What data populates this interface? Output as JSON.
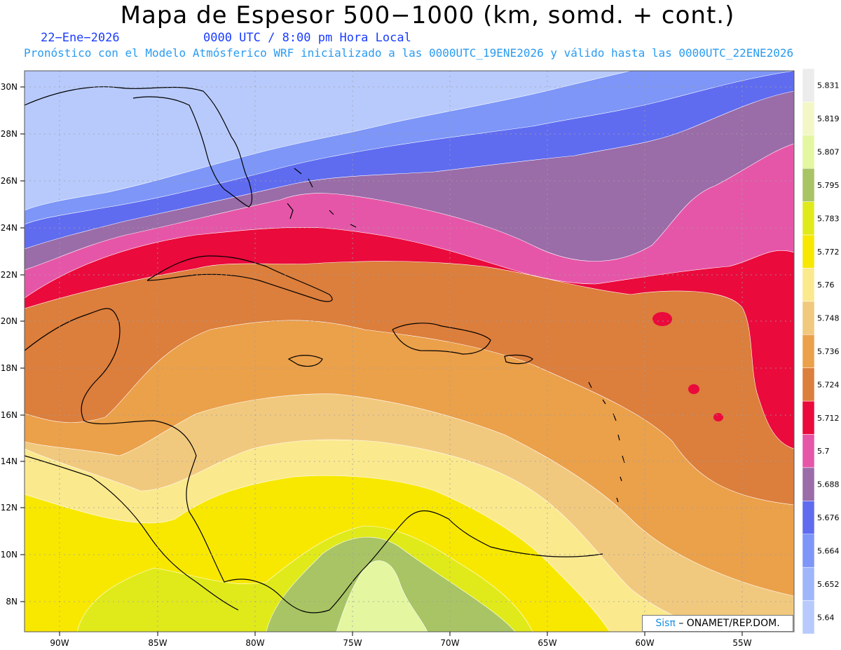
{
  "header": {
    "title": "Mapa de Espesor 500−1000 (km, somd. + cont.)",
    "date": "22−Ene−2026",
    "time": "0000 UTC / 8:00 pm Hora Local",
    "forecast": "Pronóstico con el Modelo Atmósferico WRF inicializado a las 0000UTC_19ENE2026 y válido hasta las  0000UTC_22ENE2026"
  },
  "lat_labels": [
    "30N",
    "28N",
    "26N",
    "24N",
    "22N",
    "20N",
    "18N",
    "16N",
    "14N",
    "12N",
    "10N",
    "8N"
  ],
  "lon_labels": [
    "90W",
    "85W",
    "80W",
    "75W",
    "70W",
    "65W",
    "60W",
    "55W"
  ],
  "colorbar": {
    "values": [
      "5.831",
      "5.819",
      "5.807",
      "5.795",
      "5.783",
      "5.772",
      "5.76",
      "5.748",
      "5.736",
      "5.724",
      "5.712",
      "5.7",
      "5.688",
      "5.676",
      "5.664",
      "5.652",
      "5.64"
    ],
    "colors": [
      "#ececec",
      "#f3f7c6",
      "#e4f6a0",
      "#a8c464",
      "#e0ea1a",
      "#f8e800",
      "#fbe98e",
      "#f1c97e",
      "#eba04a",
      "#dc7e3c",
      "#ea0a3c",
      "#e656a8",
      "#9a6ca8",
      "#5f6cf0",
      "#7d96f7",
      "#a0b6fb",
      "#b8cafc"
    ]
  },
  "credit": {
    "sis": "Sisπ",
    "org": "– ONAMET/REP.DOM."
  },
  "colors": {
    "ocean_default": "#dc7e3c",
    "coast": "#000000",
    "grid": "#a0a0a0"
  }
}
